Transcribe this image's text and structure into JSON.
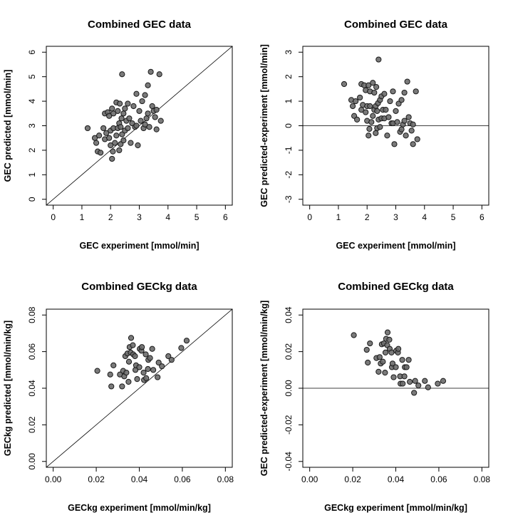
{
  "chart_data": [
    {
      "id": "gec-pred-vs-exp",
      "type": "scatter",
      "title": "Combined GEC data",
      "xlabel": "GEC experiment [mmol/min]",
      "ylabel": "GEC predicted [mmol/min]",
      "xlim": [
        0,
        6
      ],
      "ylim": [
        0,
        6
      ],
      "xticks": [
        0,
        1,
        2,
        3,
        4,
        5,
        6
      ],
      "yticks": [
        0,
        1,
        2,
        3,
        4,
        5,
        6
      ],
      "xtick_labels": [
        "0",
        "1",
        "2",
        "3",
        "4",
        "5",
        "6"
      ],
      "ytick_labels": [
        "0",
        "1",
        "2",
        "3",
        "4",
        "5",
        "6"
      ],
      "reference_line": "identity",
      "point_color": "#6b6b6b",
      "points": [
        [
          1.2,
          2.9
        ],
        [
          1.45,
          2.5
        ],
        [
          1.5,
          2.3
        ],
        [
          1.55,
          1.95
        ],
        [
          1.6,
          2.6
        ],
        [
          1.65,
          1.9
        ],
        [
          1.75,
          2.9
        ],
        [
          1.8,
          2.45
        ],
        [
          1.8,
          3.5
        ],
        [
          1.85,
          2.7
        ],
        [
          1.9,
          3.55
        ],
        [
          1.95,
          2.5
        ],
        [
          1.95,
          3.4
        ],
        [
          2.0,
          2.2
        ],
        [
          2.0,
          2.8
        ],
        [
          2.05,
          3.7
        ],
        [
          2.05,
          1.65
        ],
        [
          2.08,
          1.95
        ],
        [
          2.1,
          2.9
        ],
        [
          2.1,
          3.5
        ],
        [
          2.15,
          2.3
        ],
        [
          2.2,
          2.6
        ],
        [
          2.2,
          3.95
        ],
        [
          2.25,
          2.9
        ],
        [
          2.25,
          3.6
        ],
        [
          2.3,
          2.0
        ],
        [
          2.3,
          3.1
        ],
        [
          2.32,
          3.9
        ],
        [
          2.35,
          2.25
        ],
        [
          2.35,
          2.95
        ],
        [
          2.38,
          3.3
        ],
        [
          2.4,
          5.1
        ],
        [
          2.4,
          2.65
        ],
        [
          2.45,
          3.5
        ],
        [
          2.45,
          2.4
        ],
        [
          2.5,
          3.7
        ],
        [
          2.5,
          2.8
        ],
        [
          2.55,
          3.2
        ],
        [
          2.6,
          2.9
        ],
        [
          2.6,
          3.9
        ],
        [
          2.65,
          3.3
        ],
        [
          2.7,
          2.3
        ],
        [
          2.75,
          3.1
        ],
        [
          2.8,
          3.8
        ],
        [
          2.85,
          2.95
        ],
        [
          2.9,
          4.3
        ],
        [
          2.9,
          3.0
        ],
        [
          2.95,
          2.2
        ],
        [
          3.0,
          3.6
        ],
        [
          3.05,
          3.2
        ],
        [
          3.1,
          4.0
        ],
        [
          3.15,
          2.9
        ],
        [
          3.2,
          4.25
        ],
        [
          3.2,
          3.05
        ],
        [
          3.25,
          3.3
        ],
        [
          3.3,
          4.65
        ],
        [
          3.3,
          3.5
        ],
        [
          3.35,
          2.95
        ],
        [
          3.4,
          5.2
        ],
        [
          3.45,
          3.8
        ],
        [
          3.5,
          3.6
        ],
        [
          3.55,
          3.35
        ],
        [
          3.6,
          2.85
        ],
        [
          3.6,
          3.65
        ],
        [
          3.7,
          5.1
        ],
        [
          3.75,
          3.2
        ]
      ]
    },
    {
      "id": "gec-resid-vs-exp",
      "type": "scatter",
      "title": "Combined GEC data",
      "xlabel": "GEC experiment [mmol/min]",
      "ylabel": "GEC predicted-experiment [mmol/min]",
      "xlim": [
        0,
        6
      ],
      "ylim": [
        -3,
        3
      ],
      "xticks": [
        0,
        1,
        2,
        3,
        4,
        5,
        6
      ],
      "yticks": [
        -3,
        -2,
        -1,
        0,
        1,
        2,
        3
      ],
      "xtick_labels": [
        "0",
        "1",
        "2",
        "3",
        "4",
        "5",
        "6"
      ],
      "ytick_labels": [
        "-3",
        "-2",
        "-1",
        "0",
        "1",
        "2",
        "3"
      ],
      "reference_line": "zero",
      "point_color": "#6b6b6b",
      "points": [
        [
          1.2,
          1.7
        ],
        [
          1.45,
          1.05
        ],
        [
          1.5,
          0.8
        ],
        [
          1.55,
          0.4
        ],
        [
          1.6,
          1.0
        ],
        [
          1.65,
          0.25
        ],
        [
          1.75,
          1.15
        ],
        [
          1.8,
          0.65
        ],
        [
          1.8,
          1.7
        ],
        [
          1.85,
          0.85
        ],
        [
          1.9,
          1.65
        ],
        [
          1.95,
          0.55
        ],
        [
          1.95,
          1.45
        ],
        [
          2.0,
          0.2
        ],
        [
          2.0,
          0.8
        ],
        [
          2.05,
          1.65
        ],
        [
          2.05,
          -0.4
        ],
        [
          2.08,
          -0.13
        ],
        [
          2.1,
          0.8
        ],
        [
          2.1,
          1.4
        ],
        [
          2.15,
          0.15
        ],
        [
          2.2,
          0.4
        ],
        [
          2.2,
          1.75
        ],
        [
          2.25,
          0.65
        ],
        [
          2.25,
          1.35
        ],
        [
          2.3,
          -0.3
        ],
        [
          2.3,
          0.8
        ],
        [
          2.32,
          1.58
        ],
        [
          2.35,
          -0.1
        ],
        [
          2.35,
          0.6
        ],
        [
          2.38,
          0.92
        ],
        [
          2.4,
          2.7
        ],
        [
          2.4,
          0.25
        ],
        [
          2.45,
          1.05
        ],
        [
          2.45,
          -0.05
        ],
        [
          2.5,
          1.2
        ],
        [
          2.5,
          0.3
        ],
        [
          2.55,
          0.65
        ],
        [
          2.6,
          0.3
        ],
        [
          2.6,
          1.3
        ],
        [
          2.65,
          0.65
        ],
        [
          2.7,
          -0.4
        ],
        [
          2.75,
          0.35
        ],
        [
          2.8,
          1.0
        ],
        [
          2.85,
          0.1
        ],
        [
          2.9,
          1.4
        ],
        [
          2.9,
          0.1
        ],
        [
          2.95,
          -0.75
        ],
        [
          3.0,
          0.6
        ],
        [
          3.05,
          0.15
        ],
        [
          3.1,
          0.9
        ],
        [
          3.15,
          -0.25
        ],
        [
          3.2,
          1.05
        ],
        [
          3.2,
          -0.15
        ],
        [
          3.25,
          0.05
        ],
        [
          3.3,
          1.35
        ],
        [
          3.3,
          0.2
        ],
        [
          3.35,
          -0.4
        ],
        [
          3.4,
          1.8
        ],
        [
          3.45,
          0.35
        ],
        [
          3.5,
          0.1
        ],
        [
          3.55,
          -0.2
        ],
        [
          3.6,
          -0.75
        ],
        [
          3.6,
          0.05
        ],
        [
          3.7,
          1.4
        ],
        [
          3.75,
          -0.55
        ]
      ]
    },
    {
      "id": "geckg-pred-vs-exp",
      "type": "scatter",
      "title": "Combined GECkg data",
      "xlabel": "GECkg experiment [mmol/min/kg]",
      "ylabel": "GECkg predicted [mmol/min/kg]",
      "xlim": [
        0,
        0.08
      ],
      "ylim": [
        0,
        0.08
      ],
      "xticks": [
        0,
        0.02,
        0.04,
        0.06,
        0.08
      ],
      "yticks": [
        0,
        0.02,
        0.04,
        0.06,
        0.08
      ],
      "xtick_labels": [
        "0.00",
        "0.02",
        "0.04",
        "0.06",
        "0.08"
      ],
      "ytick_labels": [
        "0.00",
        "0.02",
        "0.04",
        "0.06",
        "0.08"
      ],
      "reference_line": "identity",
      "point_color": "#6b6b6b",
      "points": [
        [
          0.0205,
          0.0495
        ],
        [
          0.0265,
          0.0475
        ],
        [
          0.027,
          0.041
        ],
        [
          0.028,
          0.0525
        ],
        [
          0.031,
          0.0475
        ],
        [
          0.032,
          0.041
        ],
        [
          0.0325,
          0.0495
        ],
        [
          0.033,
          0.0465
        ],
        [
          0.0335,
          0.0575
        ],
        [
          0.034,
          0.0485
        ],
        [
          0.0345,
          0.059
        ],
        [
          0.035,
          0.0435
        ],
        [
          0.0352,
          0.0545
        ],
        [
          0.0355,
          0.0625
        ],
        [
          0.036,
          0.0595
        ],
        [
          0.0362,
          0.0675
        ],
        [
          0.037,
          0.0635
        ],
        [
          0.0372,
          0.0585
        ],
        [
          0.038,
          0.0575
        ],
        [
          0.0382,
          0.05
        ],
        [
          0.0385,
          0.0525
        ],
        [
          0.039,
          0.045
        ],
        [
          0.04,
          0.0515
        ],
        [
          0.0402,
          0.0615
        ],
        [
          0.041,
          0.0605
        ],
        [
          0.0412,
          0.0625
        ],
        [
          0.042,
          0.0485
        ],
        [
          0.0422,
          0.0445
        ],
        [
          0.043,
          0.0585
        ],
        [
          0.0432,
          0.0455
        ],
        [
          0.044,
          0.0505
        ],
        [
          0.0442,
          0.0555
        ],
        [
          0.045,
          0.0565
        ],
        [
          0.046,
          0.0615
        ],
        [
          0.0465,
          0.05
        ],
        [
          0.0485,
          0.046
        ],
        [
          0.049,
          0.054
        ],
        [
          0.0505,
          0.052
        ],
        [
          0.0535,
          0.0575
        ],
        [
          0.055,
          0.0555
        ],
        [
          0.0595,
          0.062
        ],
        [
          0.062,
          0.066
        ]
      ]
    },
    {
      "id": "geckg-resid-vs-exp",
      "type": "scatter",
      "title": "Combined GECkg data",
      "xlabel": "GECkg experiment [mmol/min/kg]",
      "ylabel": "GEC predicted-experiment [mmol/min/kg]",
      "xlim": [
        0,
        0.08
      ],
      "ylim": [
        -0.04,
        0.04
      ],
      "xticks": [
        0,
        0.02,
        0.04,
        0.06,
        0.08
      ],
      "yticks": [
        -0.04,
        -0.02,
        0,
        0.02,
        0.04
      ],
      "xtick_labels": [
        "0.00",
        "0.02",
        "0.04",
        "0.06",
        "0.08"
      ],
      "ytick_labels": [
        "-0.04",
        "-0.02",
        "0.00",
        "0.02",
        "0.04"
      ],
      "reference_line": "zero",
      "point_color": "#6b6b6b",
      "points": [
        [
          0.0205,
          0.029
        ],
        [
          0.0265,
          0.021
        ],
        [
          0.027,
          0.014
        ],
        [
          0.028,
          0.0245
        ],
        [
          0.031,
          0.0165
        ],
        [
          0.032,
          0.009
        ],
        [
          0.0325,
          0.017
        ],
        [
          0.033,
          0.0135
        ],
        [
          0.0335,
          0.024
        ],
        [
          0.034,
          0.0145
        ],
        [
          0.0345,
          0.0245
        ],
        [
          0.035,
          0.0085
        ],
        [
          0.0352,
          0.0195
        ],
        [
          0.0355,
          0.027
        ],
        [
          0.036,
          0.0235
        ],
        [
          0.0362,
          0.0305
        ],
        [
          0.037,
          0.0265
        ],
        [
          0.0372,
          0.0215
        ],
        [
          0.038,
          0.0195
        ],
        [
          0.0382,
          0.0115
        ],
        [
          0.0385,
          0.0135
        ],
        [
          0.039,
          0.006
        ],
        [
          0.04,
          0.0115
        ],
        [
          0.0402,
          0.0205
        ],
        [
          0.041,
          0.0195
        ],
        [
          0.0412,
          0.0215
        ],
        [
          0.042,
          0.0065
        ],
        [
          0.0422,
          0.0025
        ],
        [
          0.043,
          0.0155
        ],
        [
          0.0432,
          0.0025
        ],
        [
          0.044,
          0.0065
        ],
        [
          0.0442,
          0.0115
        ],
        [
          0.045,
          0.0115
        ],
        [
          0.046,
          0.0155
        ],
        [
          0.0465,
          0.0035
        ],
        [
          0.0485,
          -0.0025
        ],
        [
          0.049,
          0.004
        ],
        [
          0.0505,
          0.0015
        ],
        [
          0.0535,
          0.004
        ],
        [
          0.055,
          0.0005
        ],
        [
          0.0595,
          0.0025
        ],
        [
          0.062,
          0.004
        ]
      ]
    }
  ]
}
